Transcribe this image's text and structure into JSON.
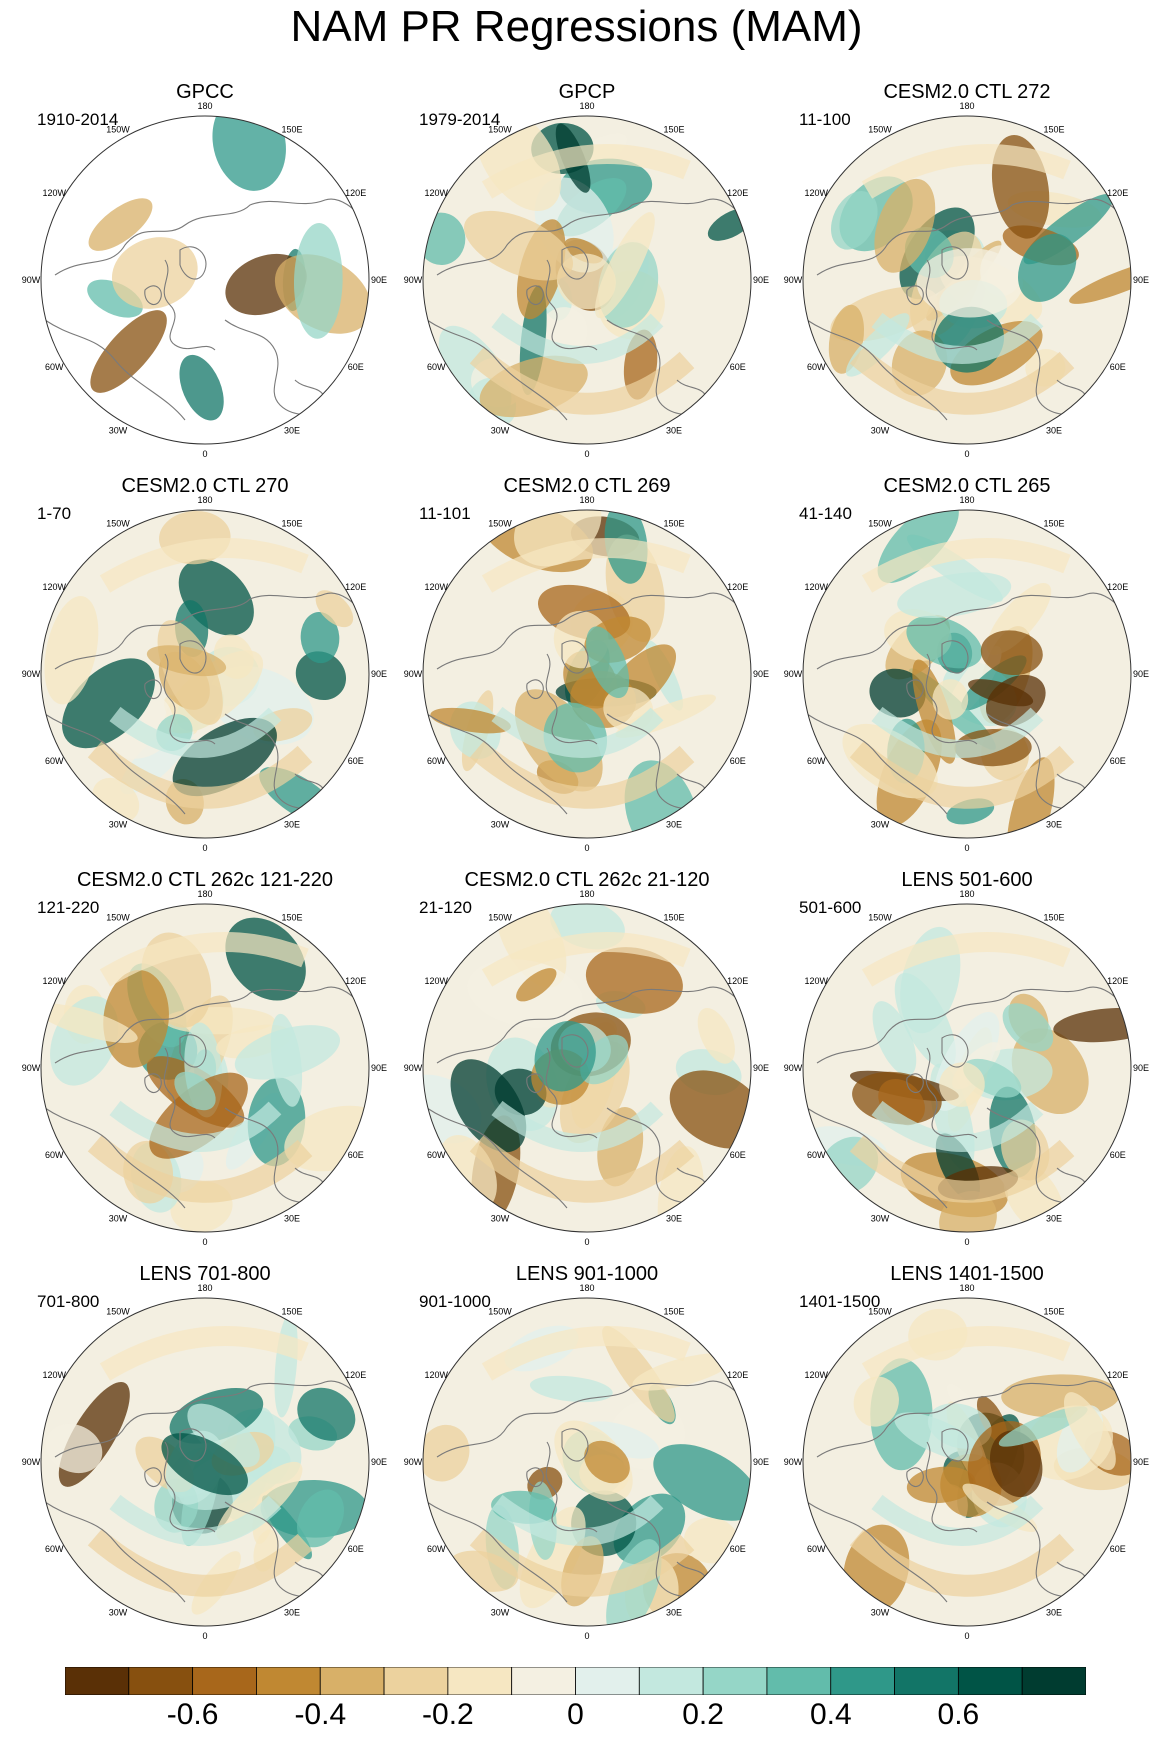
{
  "title": "NAM PR Regressions (MAM)",
  "longitude_labels": [
    "180",
    "150E",
    "120E",
    "90E",
    "60E",
    "30E",
    "0",
    "30W",
    "60W",
    "90W",
    "120W",
    "150W"
  ],
  "panels": [
    {
      "title": "GPCC",
      "years": "1910-2014",
      "land_only": true
    },
    {
      "title": "GPCP",
      "years": "1979-2014"
    },
    {
      "title": "CESM2.0 CTL 272",
      "years": "11-100"
    },
    {
      "title": "CESM2.0 CTL 270",
      "years": "1-70"
    },
    {
      "title": "CESM2.0 CTL 269",
      "years": "11-101"
    },
    {
      "title": "CESM2.0 CTL 265",
      "years": "41-140"
    },
    {
      "title": "CESM2.0 CTL 262c 121-220",
      "years": "121-220"
    },
    {
      "title": "CESM2.0 CTL 262c 21-120",
      "years": "21-120"
    },
    {
      "title": "LENS 501-600",
      "years": "501-600"
    },
    {
      "title": "LENS 701-800",
      "years": "701-800"
    },
    {
      "title": "LENS 901-1000",
      "years": "901-1000"
    },
    {
      "title": "LENS 1401-1500",
      "years": "1401-1500"
    }
  ],
  "colorbar": {
    "colors": [
      "#5a3006",
      "#87500f",
      "#a8671b",
      "#c08832",
      "#d8b068",
      "#ecd29e",
      "#f6e7c2",
      "#f4f0e2",
      "#e2f0ec",
      "#c3e8df",
      "#95d6c7",
      "#62bcab",
      "#2f9889",
      "#127567",
      "#005446",
      "#003c30"
    ],
    "labels": [
      "-0.6",
      "-0.4",
      "-0.2",
      "0",
      "0.2",
      "0.4",
      "0.6"
    ],
    "label_values": [
      -0.6,
      -0.4,
      -0.2,
      0,
      0.2,
      0.4,
      0.6
    ],
    "min": -0.8,
    "max": 0.8
  }
}
